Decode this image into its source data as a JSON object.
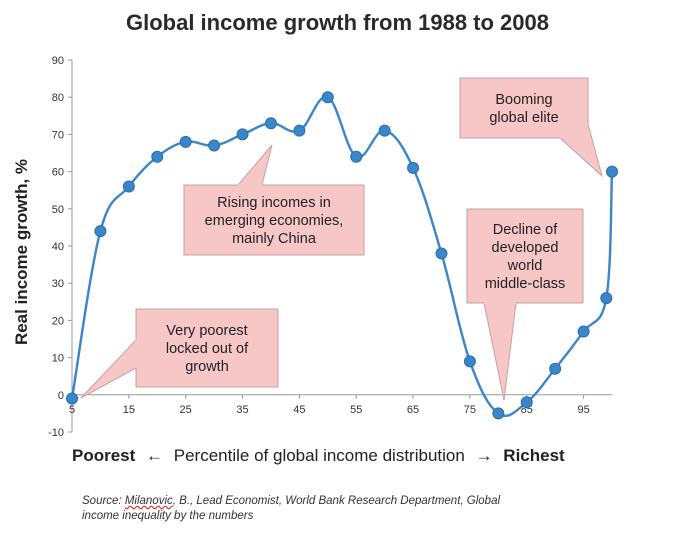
{
  "chart_data": {
    "type": "line",
    "title": "Global income growth from 1988 to 2008",
    "ylabel": "Real income growth, %",
    "xlabel": {
      "left": "Poorest",
      "middle": "Percentile of global income distribution",
      "right": "Richest"
    },
    "ylim": [
      -10,
      90
    ],
    "yticks": [
      -10,
      0,
      10,
      20,
      30,
      40,
      50,
      60,
      70,
      80,
      90
    ],
    "xlim": [
      5,
      100
    ],
    "xticks": [
      5,
      15,
      25,
      35,
      45,
      55,
      65,
      75,
      85,
      95
    ],
    "xtick_labels": [
      "5",
      "15",
      "25",
      "35",
      "45",
      "55",
      "65",
      "75",
      "85",
      "95"
    ],
    "grid": false,
    "line_color": "#3a86cb",
    "marker_color": "#3a86cb",
    "series": [
      {
        "name": "Real income growth",
        "x": [
          5,
          10,
          15,
          20,
          25,
          30,
          35,
          40,
          45,
          50,
          55,
          60,
          65,
          70,
          75,
          80,
          85,
          90,
          95,
          99,
          100
        ],
        "values": [
          -1,
          44,
          56,
          64,
          68,
          67,
          70,
          73,
          71,
          80,
          64,
          71,
          61,
          38,
          9,
          -5,
          -2,
          7,
          17,
          26,
          60
        ]
      }
    ],
    "annotations": [
      {
        "id": "poorest",
        "text": [
          "Very poorest",
          "locked out of",
          "growth"
        ],
        "points_to_x": 5
      },
      {
        "id": "rising",
        "text": [
          "Rising incomes in",
          "emerging economies,",
          "mainly China"
        ],
        "points_to_x": 40
      },
      {
        "id": "elite",
        "text": [
          "Booming",
          "global elite"
        ],
        "points_to_x": 100
      },
      {
        "id": "decline",
        "text": [
          "Decline of",
          "developed",
          "world",
          "middle-class"
        ],
        "points_to_x": 82
      }
    ],
    "callout_fill": "#f7c6c6",
    "callout_stroke": "#c9a0a0"
  },
  "arrows": {
    "left": "←",
    "right": "→"
  },
  "source": {
    "prefix": "Source: ",
    "author": "Milanovic",
    "rest_line1": ", B., Lead Economist, World Bank Research Department, Global",
    "line2": "income inequality by the numbers"
  }
}
